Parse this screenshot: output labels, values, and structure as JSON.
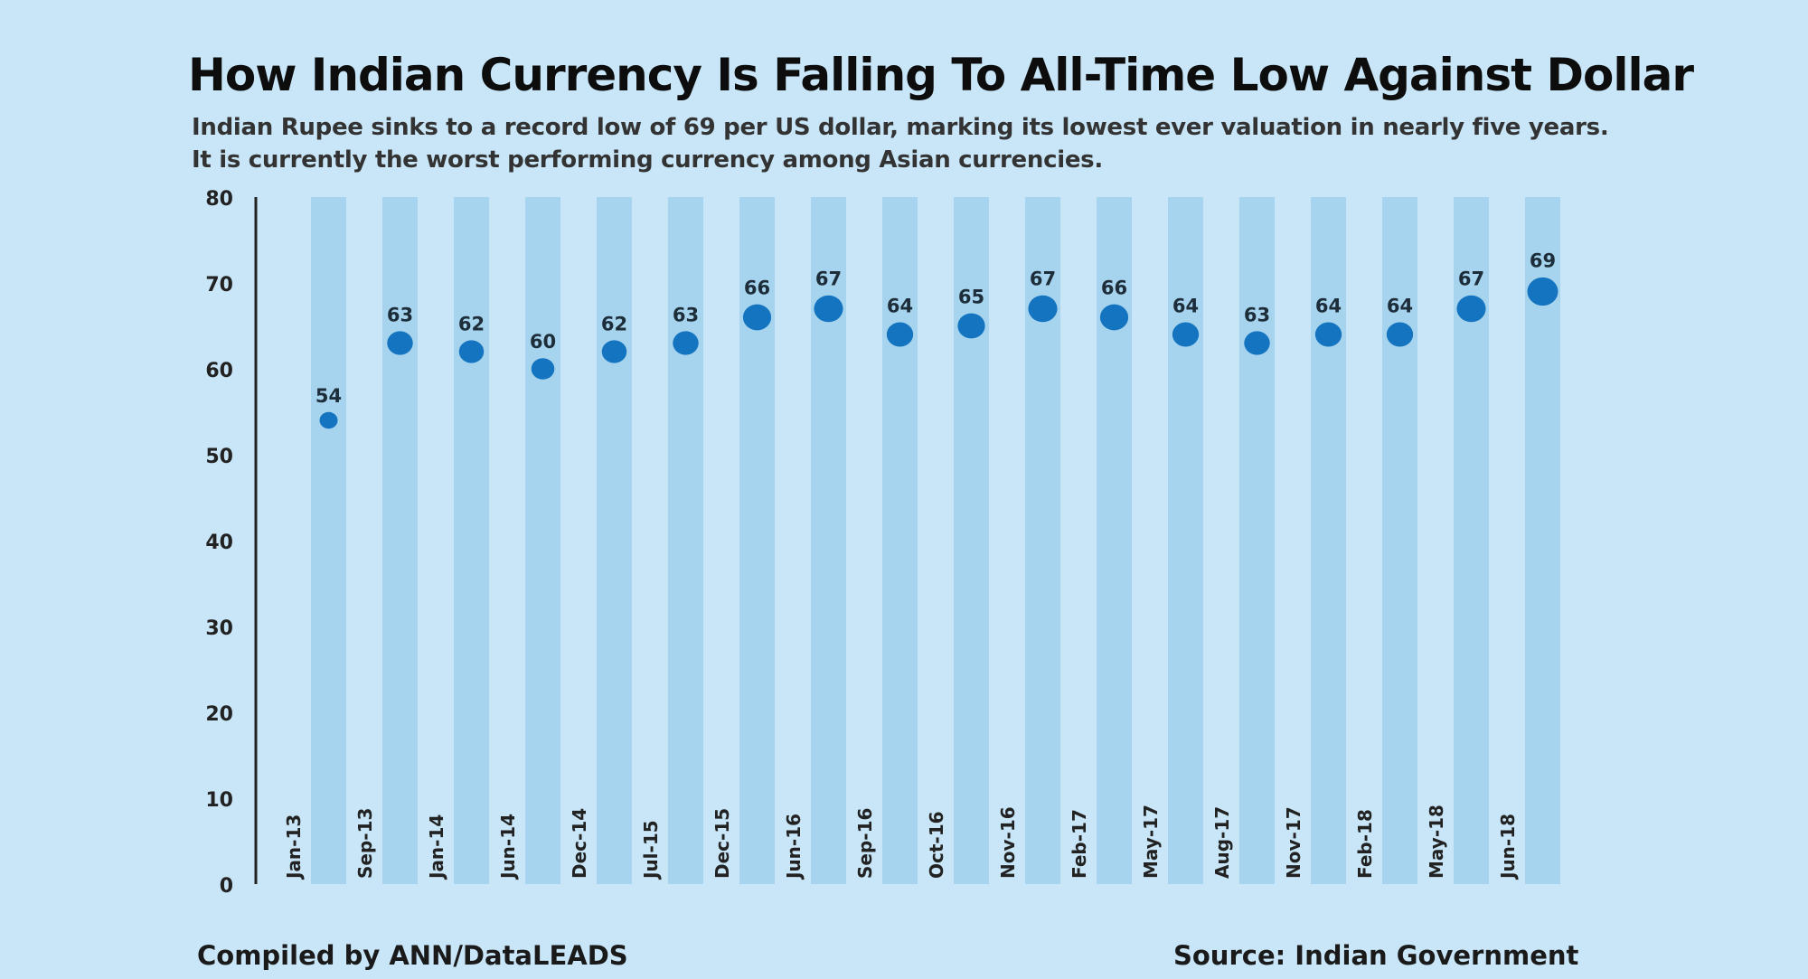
{
  "header": {
    "title": "How Indian Currency Is Falling To All-Time Low Against Dollar",
    "subtitle_line1": "Indian Rupee sinks to a record low of 69 per US dollar, marking its lowest ever valuation in nearly five years.",
    "subtitle_line2": "It is currently the worst performing currency among Asian currencies."
  },
  "footer": {
    "compiled_by": "Compiled by ANN/DataLEADS",
    "source": "Source: Indian Government"
  },
  "colors": {
    "background": "#c8e6f7",
    "column": "#a6d4ee",
    "dot": "#1474bf",
    "axis": "#222222"
  },
  "chart_data": {
    "type": "scatter",
    "title": "How Indian Currency Is Falling To All-Time Low Against Dollar",
    "xlabel": "",
    "ylabel": "",
    "ylim": [
      0,
      80
    ],
    "yticks": [
      0,
      10,
      20,
      30,
      40,
      50,
      60,
      70,
      80
    ],
    "grid": false,
    "categories": [
      "Jan-13",
      "Sep-13",
      "Jan-14",
      "Jun-14",
      "Dec-14",
      "Jul-15",
      "Dec-15",
      "Jun-16",
      "Sep-16",
      "Oct-16",
      "Nov-16",
      "Feb-17",
      "May-17",
      "Aug-17",
      "Nov-17",
      "Feb-18",
      "May-18",
      "Jun-18"
    ],
    "values": [
      54,
      63,
      62,
      60,
      62,
      63,
      66,
      67,
      64,
      65,
      67,
      66,
      64,
      63,
      64,
      64,
      67,
      69
    ],
    "data_labels": [
      "54",
      "63",
      "62",
      "60",
      "62",
      "63",
      "66",
      "67",
      "64",
      "65",
      "67",
      "66",
      "64",
      "63",
      "64",
      "64",
      "67",
      "69"
    ]
  }
}
